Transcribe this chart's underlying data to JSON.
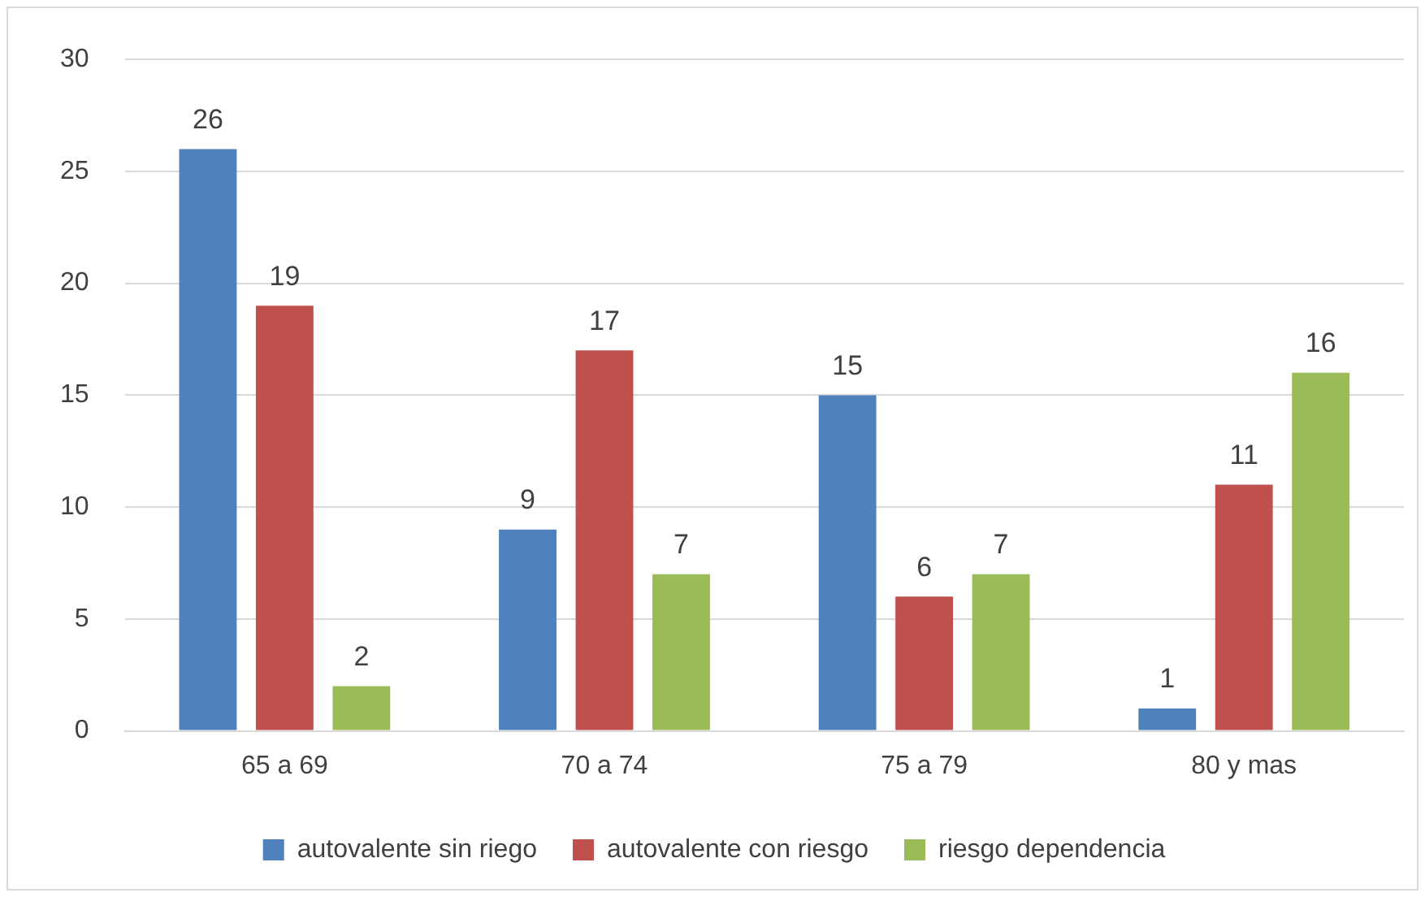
{
  "chart_data": {
    "type": "bar",
    "categories": [
      "65 a 69",
      "70 a 74",
      "75 a 79",
      "80 y mas"
    ],
    "series": [
      {
        "name": "autovalente sin riego",
        "color": "#4f81bd",
        "values": [
          26,
          9,
          15,
          1
        ]
      },
      {
        "name": "autovalente con riesgo",
        "color": "#c0504d",
        "values": [
          19,
          17,
          6,
          11
        ]
      },
      {
        "name": "riesgo dependencia",
        "color": "#9bbb59",
        "values": [
          2,
          7,
          7,
          16
        ]
      }
    ],
    "ylim": [
      0,
      30
    ],
    "yticks": [
      0,
      5,
      10,
      15,
      20,
      25,
      30
    ],
    "grid": "y",
    "legend": "bottom",
    "data_labels": true
  }
}
